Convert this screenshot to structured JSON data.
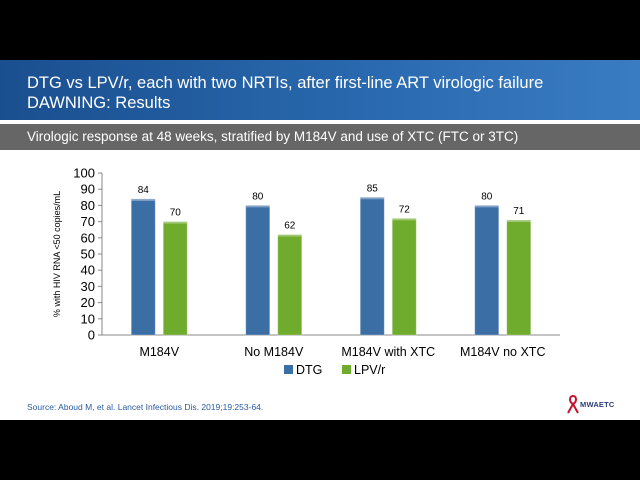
{
  "slide": {
    "title_lines": [
      "DTG vs LPV/r, each with two NRTIs, after first-line ART virologic failure",
      "DAWNING: Results"
    ],
    "subtitle": "Virologic response at 48 weeks, stratified by M184V and use of XTC (FTC or 3TC)",
    "source": "Source: Aboud M, et al. Lancet Infectious Dis. 2019;19:253-64.",
    "logo_text": "MWAETC",
    "logo_icon": "red-ribbon-icon"
  },
  "colors": {
    "title_bar": "#2a6ab0",
    "subtitle_bar": "#666666",
    "dtg": "#3a6ea5",
    "lpvr": "#6fab2c"
  },
  "chart_data": {
    "type": "bar",
    "categories": [
      "M184V",
      "No M184V",
      "M184V with XTC",
      "M184V no XTC"
    ],
    "series": [
      {
        "name": "DTG",
        "values": [
          84,
          80,
          85,
          80
        ]
      },
      {
        "name": "LPV/r",
        "values": [
          70,
          62,
          72,
          71
        ]
      }
    ],
    "ylabel": "% with HIV RNA <50 copies/mL",
    "ylim": [
      0,
      100
    ],
    "yticks": [
      0,
      10,
      20,
      30,
      40,
      50,
      60,
      70,
      80,
      90,
      100
    ],
    "legend_position": "bottom",
    "grid": false
  }
}
